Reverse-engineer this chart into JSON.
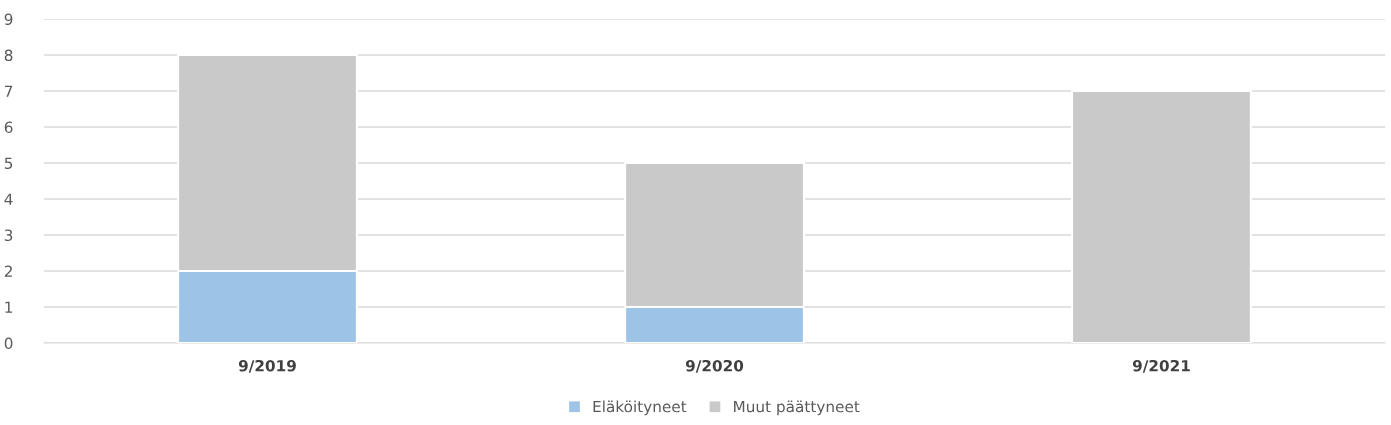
{
  "chart_data": {
    "type": "bar",
    "stacked": true,
    "categories": [
      "9/2019",
      "9/2020",
      "9/2021"
    ],
    "series": [
      {
        "name": "Eläköityneet",
        "color": "#9dc3e6",
        "values": [
          2,
          1,
          0
        ]
      },
      {
        "name": "Muut päättyneet",
        "color": "#c9c9c9",
        "values": [
          6,
          4,
          7
        ]
      }
    ],
    "ylim": [
      0,
      9
    ],
    "yticks": [
      0,
      1,
      2,
      3,
      4,
      5,
      6,
      7,
      8,
      9
    ],
    "grid": "y",
    "legend": "bottom"
  }
}
